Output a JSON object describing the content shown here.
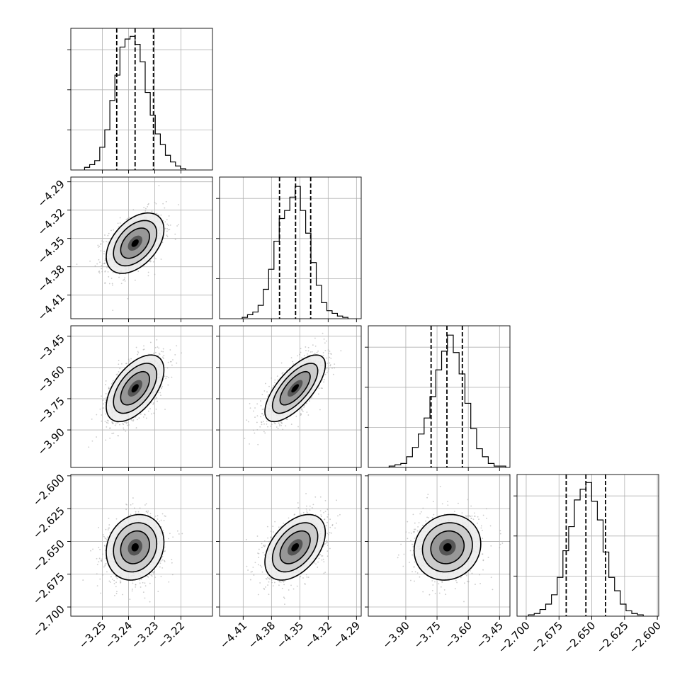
{
  "colors": {
    "line": "#000000",
    "grid": "#b0b0b0",
    "scatter": "#a0a0a0",
    "fill_levels": [
      "#ffffff",
      "#ececec",
      "#c6c6c6",
      "#8e8e8e",
      "#4a4a4a",
      "#000000"
    ]
  },
  "chart_data": {
    "type": "corner",
    "title": "",
    "n_params": 4,
    "parameters": [
      {
        "index": 0,
        "range": [
          -3.262,
          -3.208
        ],
        "ticks": [
          -3.25,
          -3.24,
          -3.23,
          -3.22
        ],
        "tick_labels": [
          "−3.25",
          "−3.24",
          "−3.23",
          "−3.22"
        ],
        "mean": -3.2375,
        "std": 0.0055,
        "quantiles": [
          -3.2445,
          -3.2375,
          -3.2305
        ],
        "hist_counts": [
          0.02,
          0.04,
          0.07,
          0.17,
          0.3,
          0.52,
          0.71,
          0.92,
          0.98,
          1.0,
          0.94,
          0.81,
          0.58,
          0.41,
          0.27,
          0.19,
          0.11,
          0.06,
          0.03,
          0.01
        ],
        "hist_yticks": [
          0.3,
          0.6,
          0.9
        ]
      },
      {
        "index": 1,
        "range": [
          -4.435,
          -4.285
        ],
        "ticks": [
          -4.41,
          -4.38,
          -4.35,
          -4.32,
          -4.29
        ],
        "tick_labels": [
          "−4.41",
          "−4.38",
          "−4.35",
          "−4.32",
          "−4.29"
        ],
        "mean": -4.355,
        "std": 0.016,
        "quantiles": [
          -4.3715,
          -4.3545,
          -4.3385
        ],
        "hist_counts": [
          0.01,
          0.03,
          0.05,
          0.1,
          0.22,
          0.37,
          0.58,
          0.75,
          0.81,
          0.91,
          0.99,
          0.81,
          0.64,
          0.42,
          0.25,
          0.12,
          0.06,
          0.04,
          0.02,
          0.01
        ],
        "hist_yticks": [
          0.3,
          0.6,
          0.9
        ]
      },
      {
        "index": 2,
        "range": [
          -4.08,
          -3.4
        ],
        "ticks": [
          -3.9,
          -3.75,
          -3.6,
          -3.45
        ],
        "tick_labels": [
          "−3.90",
          "−3.75",
          "−3.60",
          "−3.45"
        ],
        "mean": -3.7,
        "std": 0.08,
        "quantiles": [
          -3.7785,
          -3.7025,
          -3.6285
        ],
        "hist_counts": [
          0.01,
          0.02,
          0.03,
          0.08,
          0.15,
          0.25,
          0.37,
          0.53,
          0.73,
          0.87,
          0.99,
          0.86,
          0.7,
          0.48,
          0.29,
          0.14,
          0.08,
          0.03,
          0.01,
          0.01
        ],
        "hist_yticks": [
          0.3,
          0.6,
          0.9
        ]
      },
      {
        "index": 3,
        "range": [
          -2.707,
          -2.599
        ],
        "ticks": [
          -2.7,
          -2.675,
          -2.65,
          -2.625,
          -2.6
        ],
        "tick_labels": [
          "−2.700",
          "−2.675",
          "−2.650",
          "−2.625",
          "−2.600"
        ],
        "mean": -2.6545,
        "std": 0.0125,
        "quantiles": [
          -2.6695,
          -2.6545,
          -2.6395
        ],
        "hist_counts": [
          0.01,
          0.02,
          0.05,
          0.09,
          0.16,
          0.29,
          0.49,
          0.67,
          0.87,
          0.95,
          1.0,
          0.86,
          0.72,
          0.48,
          0.29,
          0.19,
          0.09,
          0.04,
          0.02,
          0.01
        ],
        "hist_yticks": [
          0.3,
          0.6,
          0.9
        ]
      }
    ],
    "pairs": [
      {
        "row": 1,
        "col": 0,
        "correlation": 0.45
      },
      {
        "row": 2,
        "col": 0,
        "correlation": 0.55
      },
      {
        "row": 2,
        "col": 1,
        "correlation": 0.7
      },
      {
        "row": 3,
        "col": 0,
        "correlation": 0.15
      },
      {
        "row": 3,
        "col": 1,
        "correlation": 0.45
      },
      {
        "row": 3,
        "col": 2,
        "correlation": 0.1
      }
    ],
    "contour_sigma_levels": [
      0.5,
      1.0,
      1.5,
      2.0
    ],
    "xlabel": "",
    "ylabel": "",
    "grid": true
  }
}
